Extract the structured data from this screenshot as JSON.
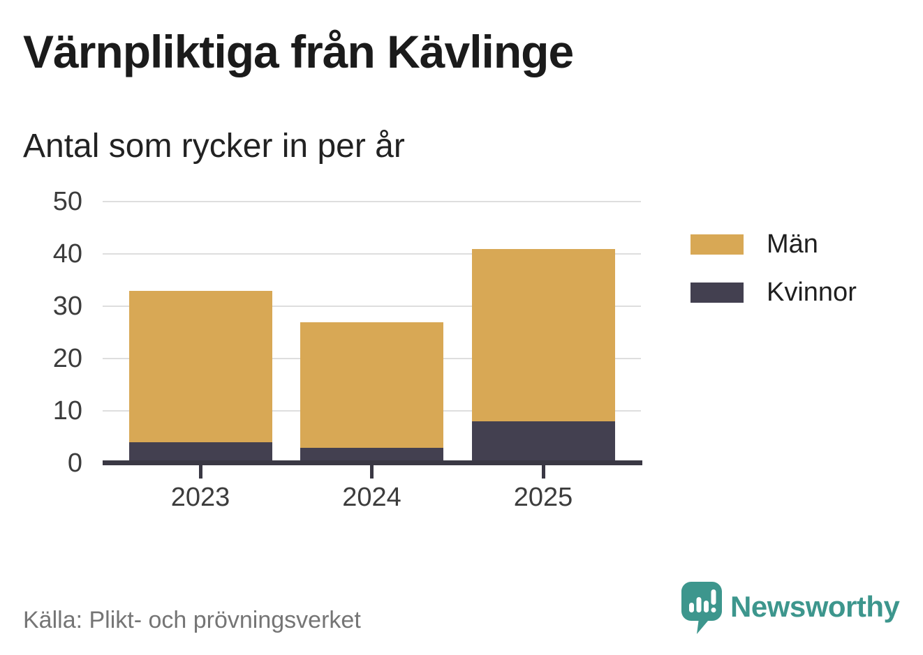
{
  "title": "Värnpliktiga från Kävlinge",
  "subtitle": "Antal som rycker in per år",
  "source": "Källa: Plikt- och prövningsverket",
  "brand": {
    "name": "Newsworthy",
    "logo_icon": "newsworthy-speech-bubble-bar-chart-icon",
    "color": "#3d968d"
  },
  "colors": {
    "men": "#d8a855",
    "women": "#434050",
    "gridline": "#dedede",
    "axis": "#3a3844",
    "tick_label": "#3c3c3c",
    "title_text": "#1b1b1b",
    "source_text": "#757575",
    "background": "#ffffff"
  },
  "legend": [
    {
      "label": "Män",
      "color": "#d8a855"
    },
    {
      "label": "Kvinnor",
      "color": "#434050"
    }
  ],
  "chart_data": {
    "type": "bar",
    "stacked": true,
    "title": "Värnpliktiga från Kävlinge",
    "subtitle": "Antal som rycker in per år",
    "categories": [
      "2023",
      "2024",
      "2025"
    ],
    "series": [
      {
        "name": "Män",
        "color": "#d8a855",
        "values": [
          29,
          24,
          33
        ]
      },
      {
        "name": "Kvinnor",
        "color": "#434050",
        "values": [
          4,
          3,
          8
        ]
      }
    ],
    "stack_order_bottom_to_top": [
      "Kvinnor",
      "Män"
    ],
    "totals": [
      33,
      27,
      41
    ],
    "xlabel": "",
    "ylabel": "",
    "y_ticks": [
      0,
      10,
      20,
      30,
      40,
      50
    ],
    "ylim": [
      0,
      50
    ],
    "grid": "horizontal",
    "legend_position": "right"
  }
}
